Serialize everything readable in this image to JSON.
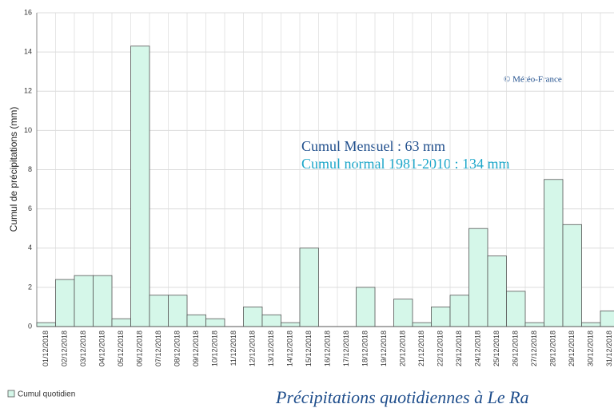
{
  "chart_data": {
    "type": "bar",
    "title": "Précipitations quotidiennes à Le Ra",
    "ylabel": "Cumul de précipitations (mm)",
    "annotations": [
      "© Météo-France",
      "Cumul Mensuel : 63 mm",
      "Cumul normal 1981-2010 : 134 mm"
    ],
    "categories": [
      "01/12/2018",
      "02/12/2018",
      "03/12/2018",
      "04/12/2018",
      "05/12/2018",
      "06/12/2018",
      "07/12/2018",
      "08/12/2018",
      "09/12/2018",
      "10/12/2018",
      "11/12/2018",
      "12/12/2018",
      "13/12/2018",
      "14/12/2018",
      "15/12/2018",
      "16/12/2018",
      "17/12/2018",
      "18/12/2018",
      "19/12/2018",
      "20/12/2018",
      "21/12/2018",
      "22/12/2018",
      "23/12/2018",
      "24/12/2018",
      "25/12/2018",
      "26/12/2018",
      "27/12/2018",
      "28/12/2018",
      "29/12/2018",
      "30/12/2018",
      "31/12/2018"
    ],
    "series": [
      {
        "name": "Cumul quotidien",
        "color": "#d5f7e9",
        "values": [
          0.2,
          2.4,
          2.6,
          2.6,
          0.4,
          14.3,
          1.6,
          1.6,
          0.6,
          0.4,
          0,
          1.0,
          0.6,
          0.2,
          4.0,
          0,
          0,
          2.0,
          0,
          1.4,
          0.2,
          1.0,
          1.6,
          5.0,
          3.6,
          1.8,
          0.2,
          7.5,
          5.2,
          0.2,
          0.8
        ]
      }
    ],
    "ylim": [
      0,
      16
    ],
    "yticks": [
      0,
      2,
      4,
      6,
      8,
      10,
      12,
      14,
      16
    ],
    "grid": true,
    "legend": "bottom-left"
  }
}
